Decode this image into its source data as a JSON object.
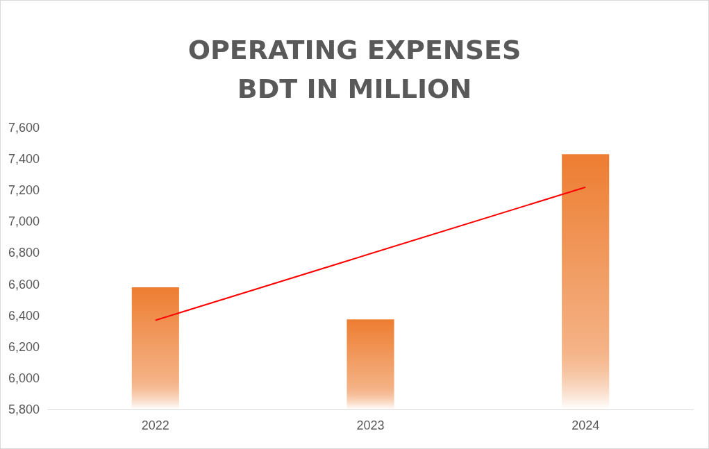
{
  "chart_data": {
    "type": "bar",
    "title": "OPERATING EXPENSES\nBDT IN MILLION",
    "categories": [
      "2022",
      "2023",
      "2024"
    ],
    "series": [
      {
        "color": "#ed7d31",
        "values": [
          6580,
          6375,
          7430
        ]
      },
      {
        "type": "line",
        "color": "#ff0000",
        "values": [
          6370,
          6795,
          7220
        ],
        "marker": "none"
      }
    ],
    "ylim": [
      5800,
      7600
    ],
    "yticks": [
      {
        "value": 5800,
        "label": "5,800"
      },
      {
        "value": 6000,
        "label": "6,000"
      },
      {
        "value": 6200,
        "label": "6,200"
      },
      {
        "value": 6400,
        "label": "6,400"
      },
      {
        "value": 6600,
        "label": "6,600"
      },
      {
        "value": 6800,
        "label": "6,800"
      },
      {
        "value": 7000,
        "label": "7,000"
      },
      {
        "value": 7200,
        "label": "7,200"
      },
      {
        "value": 7400,
        "label": "7,400"
      },
      {
        "value": 7600,
        "label": "7,600"
      }
    ],
    "grid": false
  }
}
